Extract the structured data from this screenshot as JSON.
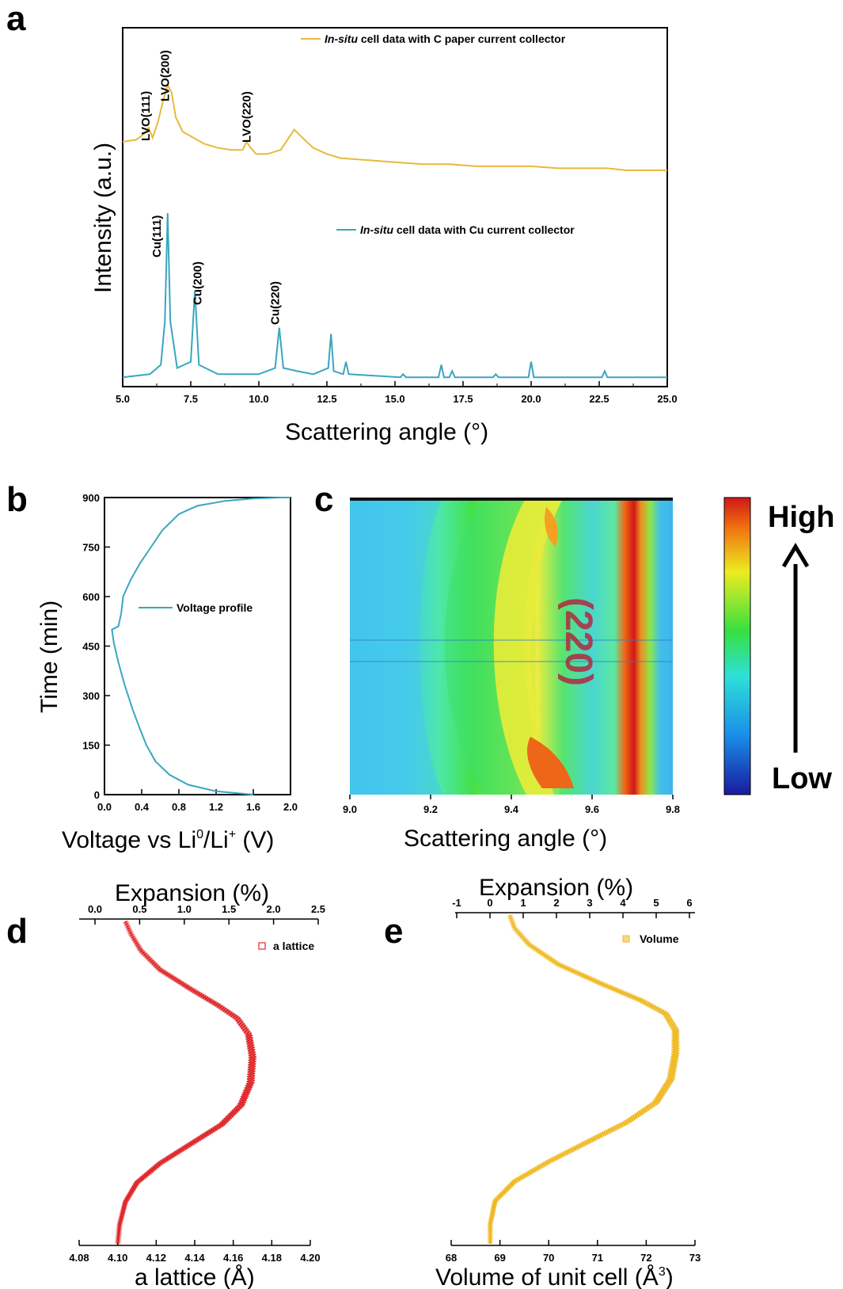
{
  "panel_letters": {
    "a": "a",
    "b": "b",
    "c": "c",
    "d": "d",
    "e": "e"
  },
  "colors": {
    "carbon": "#e8b93c",
    "copper": "#3aa6c0",
    "voltage": "#3aa6c0",
    "lattice": "#e0282a",
    "volume": "#f0b820"
  },
  "chart_data": [
    {
      "id": "a",
      "type": "line",
      "xlabel": "Scattering angle (°)",
      "ylabel": "Intensity (a.u.)",
      "xlim": [
        5.0,
        25.0
      ],
      "xticks": [
        "5.0",
        "7.5",
        "10.0",
        "12.5",
        "15.0",
        "17.5",
        "20.0",
        "22.5",
        "25.0"
      ],
      "series": [
        {
          "name_prefix": "In-situ",
          "name": " cell data with C paper current collector",
          "color": "#e8b93c",
          "x": [
            5.0,
            5.5,
            5.8,
            5.95,
            6.1,
            6.3,
            6.5,
            6.65,
            6.8,
            6.95,
            7.2,
            7.6,
            8.0,
            8.5,
            9.0,
            9.4,
            9.55,
            9.7,
            9.9,
            10.3,
            10.8,
            11.1,
            11.3,
            11.6,
            12.0,
            12.5,
            13.0,
            14.0,
            15.0,
            16.0,
            17.0,
            18.0,
            19.0,
            20.0,
            21.0,
            22.0,
            22.8,
            23.5,
            24.5,
            25.0
          ],
          "y": [
            0.72,
            0.73,
            0.76,
            0.79,
            0.74,
            0.82,
            0.93,
            1.0,
            0.96,
            0.84,
            0.77,
            0.74,
            0.71,
            0.69,
            0.68,
            0.68,
            0.72,
            0.69,
            0.66,
            0.66,
            0.68,
            0.74,
            0.78,
            0.74,
            0.69,
            0.66,
            0.64,
            0.63,
            0.62,
            0.61,
            0.61,
            0.6,
            0.6,
            0.6,
            0.59,
            0.59,
            0.59,
            0.58,
            0.58,
            0.58
          ]
        },
        {
          "name_prefix": "In-situ",
          "name": " cell data with Cu current collector",
          "color": "#3aa6c0",
          "x": [
            5.0,
            6.0,
            6.4,
            6.55,
            6.65,
            6.75,
            7.0,
            7.5,
            7.65,
            7.8,
            8.5,
            10.0,
            10.6,
            10.75,
            10.9,
            11.4,
            12.0,
            12.55,
            12.65,
            12.75,
            13.1,
            13.2,
            13.3,
            15.2,
            15.3,
            15.4,
            16.6,
            16.7,
            16.8,
            17.0,
            17.1,
            17.2,
            18.6,
            18.7,
            18.8,
            19.9,
            20.0,
            20.1,
            22.6,
            22.7,
            22.8,
            25.0
          ],
          "y": [
            0.02,
            0.03,
            0.06,
            0.2,
            0.55,
            0.2,
            0.05,
            0.07,
            0.3,
            0.06,
            0.03,
            0.03,
            0.05,
            0.18,
            0.05,
            0.04,
            0.03,
            0.05,
            0.16,
            0.04,
            0.03,
            0.07,
            0.03,
            0.02,
            0.03,
            0.02,
            0.02,
            0.06,
            0.02,
            0.02,
            0.04,
            0.02,
            0.02,
            0.03,
            0.02,
            0.02,
            0.07,
            0.02,
            0.02,
            0.04,
            0.02,
            0.02
          ]
        }
      ],
      "peak_labels": [
        {
          "text": "LVO(111)",
          "x": 5.85
        },
        {
          "text": "LVO(200)",
          "x": 6.55
        },
        {
          "text": "LVO(220)",
          "x": 9.55
        },
        {
          "text": "Cu(111)",
          "x": 6.25
        },
        {
          "text": "Cu(200)",
          "x": 7.75
        },
        {
          "text": "Cu(220)",
          "x": 10.6
        }
      ]
    },
    {
      "id": "b",
      "type": "line",
      "xlabel": "Voltage vs Li",
      "xlabel_sup1": "0",
      "xlabel_mid": "/Li",
      "xlabel_sup2": "+",
      "xlabel_end": " (V)",
      "ylabel": "Time (min)",
      "xlim": [
        0.0,
        2.0
      ],
      "ylim": [
        0,
        900
      ],
      "xticks": [
        "0.0",
        "0.4",
        "0.8",
        "1.2",
        "1.6",
        "2.0"
      ],
      "xtick_vals": [
        0.0,
        0.4,
        0.8,
        1.2,
        1.6,
        2.0
      ],
      "yticks": [
        "0",
        "150",
        "300",
        "450",
        "600",
        "750",
        "900"
      ],
      "ytick_vals": [
        0,
        150,
        300,
        450,
        600,
        750,
        900
      ],
      "legend": "Voltage profile",
      "series": [
        {
          "name": "Voltage profile",
          "color": "#3aa6c0",
          "x": [
            1.6,
            1.2,
            0.9,
            0.7,
            0.55,
            0.45,
            0.38,
            0.3,
            0.22,
            0.15,
            0.1,
            0.08,
            0.15,
            0.18,
            0.2,
            0.28,
            0.38,
            0.5,
            0.62,
            0.8,
            1.0,
            1.3,
            1.6,
            1.9,
            2.0
          ],
          "y": [
            0,
            10,
            30,
            60,
            100,
            150,
            200,
            260,
            330,
            400,
            460,
            500,
            510,
            550,
            600,
            650,
            700,
            750,
            800,
            850,
            875,
            890,
            897,
            900,
            900
          ]
        }
      ]
    },
    {
      "id": "c",
      "type": "heatmap",
      "xlabel": "Scattering angle (°)",
      "xlim": [
        9.0,
        9.8
      ],
      "xticks": [
        "9.0",
        "9.2",
        "9.4",
        "9.6",
        "9.8"
      ],
      "xtick_vals": [
        9.0,
        9.2,
        9.4,
        9.6,
        9.8
      ],
      "annotation": "(220)",
      "colorbar_high": "High",
      "colorbar_low": "Low"
    },
    {
      "id": "d",
      "type": "line",
      "xlabel": "a lattice (Å)",
      "top_xlabel": "Expansion (%)",
      "xlim": [
        4.08,
        4.2
      ],
      "xticks": [
        "4.08",
        "4.10",
        "4.12",
        "4.14",
        "4.16",
        "4.18",
        "4.20"
      ],
      "xtick_vals": [
        4.08,
        4.1,
        4.12,
        4.14,
        4.16,
        4.18,
        4.2
      ],
      "top_xticks": [
        "0.0",
        "0.5",
        "1.0",
        "1.5",
        "2.0",
        "2.5"
      ],
      "top_xtick_vals": [
        0.0,
        0.5,
        1.0,
        1.5,
        2.0,
        2.5
      ],
      "legend": "a lattice",
      "series": [
        {
          "name": "a lattice",
          "color": "#e0282a",
          "x": [
            4.104,
            4.107,
            4.112,
            4.122,
            4.138,
            4.152,
            4.162,
            4.168,
            4.17,
            4.169,
            4.164,
            4.154,
            4.138,
            4.122,
            4.11,
            4.104,
            4.101,
            4.1
          ],
          "t": [
            0.0,
            0.04,
            0.09,
            0.15,
            0.21,
            0.26,
            0.3,
            0.35,
            0.42,
            0.5,
            0.57,
            0.63,
            0.69,
            0.75,
            0.81,
            0.87,
            0.94,
            1.0
          ]
        }
      ]
    },
    {
      "id": "e",
      "type": "line",
      "xlabel": "Volume of unit cell (Å",
      "xlabel_sup": "3",
      "xlabel_end": ")",
      "top_xlabel": "Expansion (%)",
      "xlim": [
        68,
        73
      ],
      "xticks": [
        "68",
        "69",
        "70",
        "71",
        "72",
        "73"
      ],
      "xtick_vals": [
        68,
        69,
        70,
        71,
        72,
        73
      ],
      "top_xticks": [
        "-1",
        "0",
        "1",
        "2",
        "3",
        "4",
        "5",
        "6"
      ],
      "top_xtick_vals": [
        -1,
        0,
        1,
        2,
        3,
        4,
        5,
        6
      ],
      "legend": "Volume",
      "series": [
        {
          "name": "Volume",
          "color": "#f0b820",
          "x": [
            69.2,
            69.3,
            69.6,
            70.2,
            71.1,
            71.9,
            72.4,
            72.6,
            72.6,
            72.5,
            72.2,
            71.6,
            70.8,
            70.0,
            69.3,
            68.9,
            68.8,
            68.8
          ],
          "t": [
            0.0,
            0.04,
            0.09,
            0.15,
            0.21,
            0.26,
            0.3,
            0.35,
            0.42,
            0.5,
            0.57,
            0.63,
            0.69,
            0.75,
            0.81,
            0.87,
            0.94,
            1.0
          ]
        }
      ]
    }
  ]
}
